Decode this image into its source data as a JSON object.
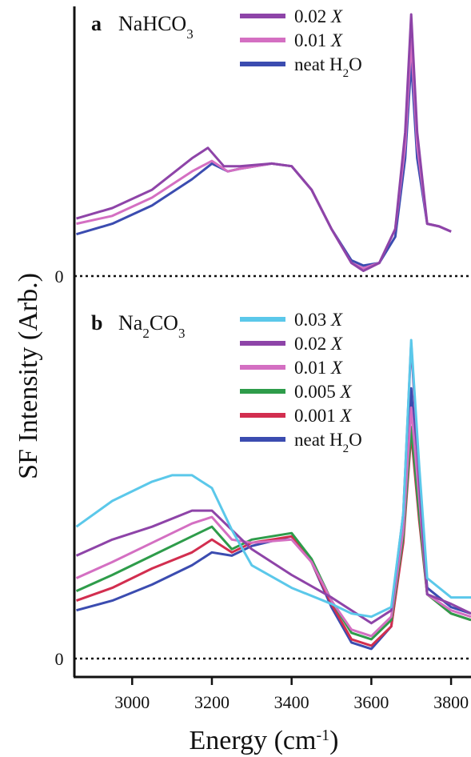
{
  "figure": {
    "ylabel": "SF Intensity (Arb.)",
    "xlabel_main": "Energy (cm",
    "xlabel_sup": "-1",
    "xlabel_close": ")"
  },
  "chart_data": [
    {
      "type": "line",
      "panel_letter": "a",
      "panel_title": {
        "base": "NaHCO",
        "sub": "3",
        "tail": ""
      },
      "zero_label": "0",
      "xlim": [
        2855,
        3850
      ],
      "ylim": [
        0,
        1
      ],
      "grid": false,
      "legend": "top-center",
      "series": [
        {
          "name": "0.02 X",
          "label_num": "0.02",
          "label_unit": "X",
          "color": "#8e44a8",
          "points": [
            [
              2860,
              0.22
            ],
            [
              2950,
              0.26
            ],
            [
              3050,
              0.33
            ],
            [
              3150,
              0.45
            ],
            [
              3190,
              0.49
            ],
            [
              3230,
              0.42
            ],
            [
              3270,
              0.42
            ],
            [
              3350,
              0.43
            ],
            [
              3400,
              0.42
            ],
            [
              3450,
              0.33
            ],
            [
              3500,
              0.18
            ],
            [
              3550,
              0.05
            ],
            [
              3580,
              0.02
            ],
            [
              3620,
              0.05
            ],
            [
              3660,
              0.18
            ],
            [
              3685,
              0.55
            ],
            [
              3700,
              1.0
            ],
            [
              3715,
              0.55
            ],
            [
              3740,
              0.2
            ],
            [
              3770,
              0.19
            ],
            [
              3800,
              0.17
            ]
          ]
        },
        {
          "name": "0.01 X",
          "label_num": "0.01",
          "label_unit": "X",
          "color": "#d46fc2",
          "points": [
            [
              2860,
              0.2
            ],
            [
              2950,
              0.23
            ],
            [
              3050,
              0.3
            ],
            [
              3150,
              0.4
            ],
            [
              3200,
              0.44
            ],
            [
              3240,
              0.4
            ],
            [
              3270,
              0.41
            ],
            [
              3350,
              0.43
            ],
            [
              3400,
              0.42
            ],
            [
              3450,
              0.33
            ],
            [
              3500,
              0.18
            ],
            [
              3550,
              0.05
            ],
            [
              3580,
              0.03
            ],
            [
              3620,
              0.05
            ],
            [
              3660,
              0.18
            ],
            [
              3685,
              0.5
            ],
            [
              3700,
              0.9
            ],
            [
              3715,
              0.5
            ],
            [
              3740,
              0.2
            ],
            [
              3770,
              0.19
            ],
            [
              3800,
              0.17
            ]
          ]
        },
        {
          "name": "neat H2O",
          "label_text": "neat H",
          "label_sub": "2",
          "label_tail": "O",
          "color": "#3b4cb0",
          "points": [
            [
              2860,
              0.16
            ],
            [
              2950,
              0.2
            ],
            [
              3050,
              0.27
            ],
            [
              3150,
              0.37
            ],
            [
              3200,
              0.43
            ],
            [
              3240,
              0.4
            ],
            [
              3270,
              0.41
            ],
            [
              3350,
              0.43
            ],
            [
              3400,
              0.42
            ],
            [
              3450,
              0.33
            ],
            [
              3500,
              0.18
            ],
            [
              3550,
              0.06
            ],
            [
              3580,
              0.04
            ],
            [
              3620,
              0.05
            ],
            [
              3660,
              0.15
            ],
            [
              3685,
              0.45
            ],
            [
              3700,
              0.82
            ],
            [
              3715,
              0.45
            ],
            [
              3740,
              0.2
            ],
            [
              3770,
              0.19
            ],
            [
              3800,
              0.17
            ]
          ]
        }
      ]
    },
    {
      "type": "line",
      "panel_letter": "b",
      "panel_title": {
        "base": "Na",
        "sub": "2",
        "tail": "CO",
        "sub2": "3"
      },
      "zero_label": "0",
      "xlim": [
        2855,
        3850
      ],
      "ylim": [
        0,
        1
      ],
      "grid": false,
      "legend": "top-center",
      "xticks": [
        3000,
        3200,
        3400,
        3600,
        3800
      ],
      "series": [
        {
          "name": "0.03 X",
          "label_num": "0.03",
          "label_unit": "X",
          "color": "#5bc8ea",
          "points": [
            [
              2860,
              0.41
            ],
            [
              2950,
              0.49
            ],
            [
              3050,
              0.55
            ],
            [
              3100,
              0.57
            ],
            [
              3150,
              0.57
            ],
            [
              3200,
              0.53
            ],
            [
              3250,
              0.4
            ],
            [
              3300,
              0.29
            ],
            [
              3400,
              0.22
            ],
            [
              3500,
              0.17
            ],
            [
              3550,
              0.14
            ],
            [
              3600,
              0.13
            ],
            [
              3650,
              0.16
            ],
            [
              3680,
              0.45
            ],
            [
              3700,
              0.99
            ],
            [
              3720,
              0.6
            ],
            [
              3740,
              0.25
            ],
            [
              3800,
              0.19
            ],
            [
              3850,
              0.19
            ]
          ]
        },
        {
          "name": "0.02 X",
          "label_num": "0.02",
          "label_unit": "X",
          "color": "#8e44a8",
          "points": [
            [
              2860,
              0.32
            ],
            [
              2950,
              0.37
            ],
            [
              3050,
              0.41
            ],
            [
              3150,
              0.46
            ],
            [
              3200,
              0.46
            ],
            [
              3250,
              0.4
            ],
            [
              3300,
              0.34
            ],
            [
              3400,
              0.26
            ],
            [
              3500,
              0.19
            ],
            [
              3600,
              0.11
            ],
            [
              3650,
              0.15
            ],
            [
              3680,
              0.45
            ],
            [
              3700,
              0.98
            ],
            [
              3720,
              0.55
            ],
            [
              3740,
              0.2
            ],
            [
              3800,
              0.17
            ],
            [
              3850,
              0.14
            ]
          ]
        },
        {
          "name": "0.01 X",
          "label_num": "0.01",
          "label_unit": "X",
          "color": "#d46fc2",
          "points": [
            [
              2860,
              0.25
            ],
            [
              2950,
              0.3
            ],
            [
              3050,
              0.36
            ],
            [
              3150,
              0.42
            ],
            [
              3200,
              0.44
            ],
            [
              3250,
              0.37
            ],
            [
              3300,
              0.36
            ],
            [
              3400,
              0.37
            ],
            [
              3450,
              0.3
            ],
            [
              3500,
              0.18
            ],
            [
              3550,
              0.09
            ],
            [
              3600,
              0.07
            ],
            [
              3650,
              0.13
            ],
            [
              3680,
              0.4
            ],
            [
              3700,
              0.78
            ],
            [
              3720,
              0.5
            ],
            [
              3740,
              0.2
            ],
            [
              3800,
              0.15
            ],
            [
              3850,
              0.13
            ]
          ]
        },
        {
          "name": "0.005 X",
          "label_num": "0.005",
          "label_unit": "X",
          "color": "#2e9c4a",
          "points": [
            [
              2860,
              0.21
            ],
            [
              2950,
              0.26
            ],
            [
              3050,
              0.32
            ],
            [
              3150,
              0.38
            ],
            [
              3200,
              0.41
            ],
            [
              3250,
              0.34
            ],
            [
              3300,
              0.37
            ],
            [
              3400,
              0.39
            ],
            [
              3450,
              0.31
            ],
            [
              3500,
              0.18
            ],
            [
              3550,
              0.08
            ],
            [
              3600,
              0.06
            ],
            [
              3650,
              0.12
            ],
            [
              3680,
              0.38
            ],
            [
              3700,
              0.72
            ],
            [
              3720,
              0.45
            ],
            [
              3740,
              0.2
            ],
            [
              3800,
              0.14
            ],
            [
              3850,
              0.12
            ]
          ]
        },
        {
          "name": "0.001 X",
          "label_num": "0.001",
          "label_unit": "X",
          "color": "#d22e4f",
          "points": [
            [
              2860,
              0.18
            ],
            [
              2950,
              0.22
            ],
            [
              3050,
              0.28
            ],
            [
              3150,
              0.33
            ],
            [
              3200,
              0.37
            ],
            [
              3250,
              0.33
            ],
            [
              3300,
              0.36
            ],
            [
              3400,
              0.38
            ],
            [
              3450,
              0.3
            ],
            [
              3500,
              0.17
            ],
            [
              3550,
              0.06
            ],
            [
              3600,
              0.04
            ],
            [
              3650,
              0.1
            ],
            [
              3680,
              0.36
            ],
            [
              3700,
              0.7
            ],
            [
              3720,
              0.43
            ],
            [
              3740,
              0.2
            ],
            [
              3800,
              0.14
            ],
            [
              3850,
              0.12
            ]
          ]
        },
        {
          "name": "neat H2O",
          "label_text": "neat H",
          "label_sub": "2",
          "label_tail": "O",
          "color": "#3b4cb0",
          "points": [
            [
              2860,
              0.15
            ],
            [
              2950,
              0.18
            ],
            [
              3050,
              0.23
            ],
            [
              3150,
              0.29
            ],
            [
              3200,
              0.33
            ],
            [
              3250,
              0.32
            ],
            [
              3300,
              0.35
            ],
            [
              3400,
              0.38
            ],
            [
              3450,
              0.3
            ],
            [
              3500,
              0.16
            ],
            [
              3550,
              0.05
            ],
            [
              3600,
              0.03
            ],
            [
              3650,
              0.1
            ],
            [
              3680,
              0.38
            ],
            [
              3700,
              0.84
            ],
            [
              3720,
              0.5
            ],
            [
              3740,
              0.22
            ],
            [
              3800,
              0.16
            ],
            [
              3850,
              0.14
            ]
          ]
        }
      ]
    }
  ]
}
